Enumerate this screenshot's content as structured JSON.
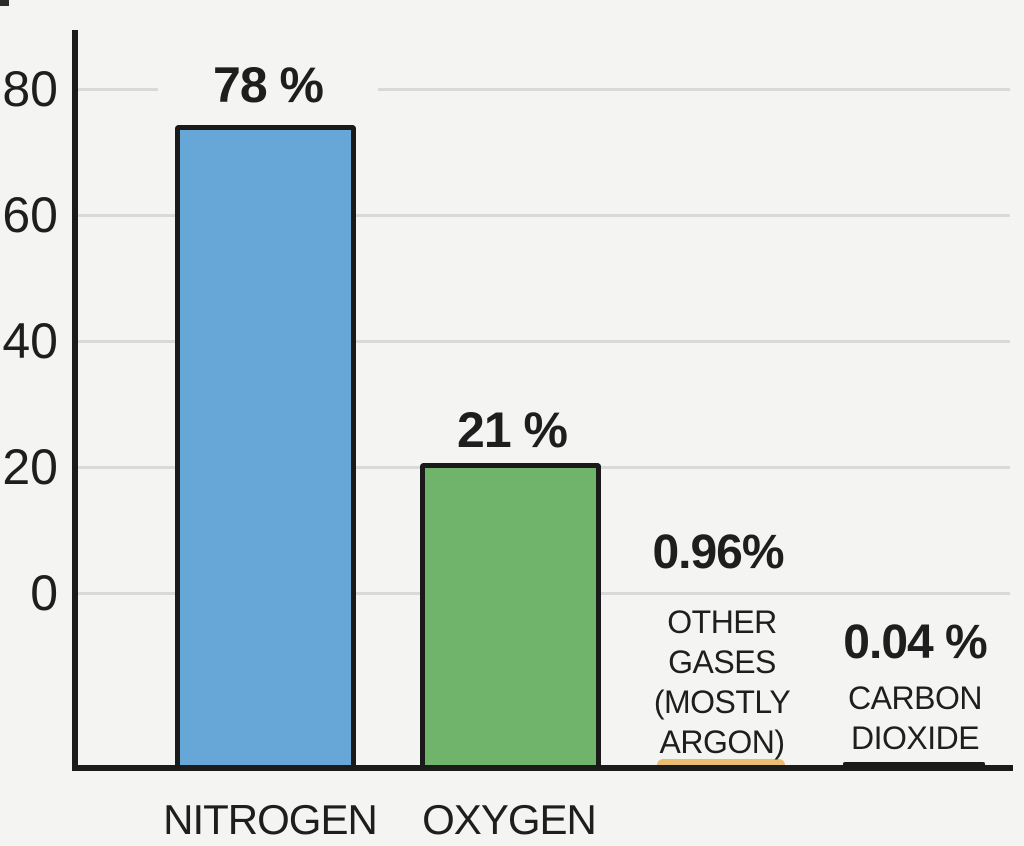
{
  "chart_data": {
    "type": "bar",
    "title": "",
    "categories": [
      "NITROGEN",
      "OXYGEN",
      "OTHER GASES (MOSTLY ARGON)",
      "CARBON DIOXIDE"
    ],
    "values": [
      78,
      21,
      0.96,
      0.04
    ],
    "value_labels": [
      "78 %",
      "21 %",
      "0.96%",
      "0.04 %"
    ],
    "xlabel": "",
    "ylabel": "",
    "y_ticks": [
      80,
      60,
      40,
      20,
      0
    ],
    "ylim": [
      0,
      85
    ],
    "grid": true,
    "legend_position": "none",
    "bar_colors": [
      "#67a7d8",
      "#70b46b",
      "#eabd72",
      "#1a1a1a"
    ]
  },
  "axis": {
    "ticks": [
      "80",
      "60",
      "40",
      "20",
      "0"
    ]
  },
  "bars": [
    {
      "name": "nitrogen",
      "value_label": "78 %",
      "category": "NITROGEN",
      "color": "#67a7d8"
    },
    {
      "name": "oxygen",
      "value_label": "21 %",
      "category": "OXYGEN",
      "color": "#70b46b"
    },
    {
      "name": "other-gases",
      "value_label": "0.96%",
      "color": "#eabd72",
      "sub_lines": [
        "OTHER",
        "GASES",
        "(MOSTLY",
        "ARGON)"
      ]
    },
    {
      "name": "carbon-dioxide",
      "value_label": "0.04 %",
      "color": "#1a1a1a",
      "sub_lines": [
        "CARBON",
        "DIOXIDE"
      ]
    }
  ],
  "colors": {
    "background": "#f4f4f2",
    "axis": "#1b1b1b",
    "gridline": "#d9d9d9",
    "text": "#1e1e1e"
  }
}
